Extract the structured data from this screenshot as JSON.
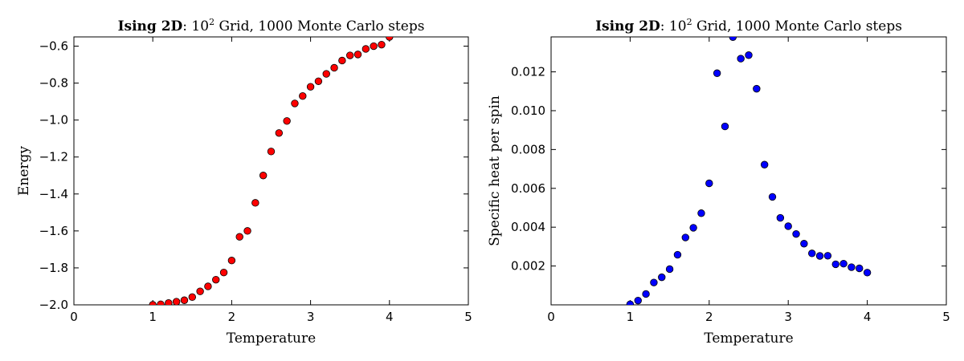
{
  "chart_data": [
    {
      "type": "scatter",
      "title_parts": {
        "bold": "Ising 2D",
        "sep": ": ",
        "base": "10",
        "exp": "2",
        "rest": " Grid, 1000 Monte Carlo steps"
      },
      "xlabel": "Temperature",
      "ylabel": "Energy",
      "xlim": [
        0,
        5
      ],
      "ylim": [
        -2.0,
        -0.55
      ],
      "xticks": [
        0,
        1,
        2,
        3,
        4,
        5
      ],
      "xtick_labels": [
        "0",
        "1",
        "2",
        "3",
        "4",
        "5"
      ],
      "yticks": [
        -2.0,
        -1.8,
        -1.6,
        -1.4,
        -1.2,
        -1.0,
        -0.8,
        -0.6
      ],
      "ytick_labels": [
        "−2.0",
        "−1.8",
        "−1.6",
        "−1.4",
        "−1.2",
        "−1.0",
        "−0.8",
        "−0.6"
      ],
      "marker_color": "#ff0000",
      "grid": false,
      "series": [
        {
          "x": [
            1.0,
            1.1,
            1.2,
            1.3,
            1.4,
            1.5,
            1.6,
            1.7,
            1.8,
            1.9,
            2.0,
            2.1,
            2.2,
            2.3,
            2.4,
            2.5,
            2.6,
            2.7,
            2.8,
            2.9,
            3.0,
            3.1,
            3.2,
            3.3,
            3.4,
            3.5,
            3.6,
            3.7,
            3.8,
            3.9,
            4.0
          ],
          "y": [
            -2.0,
            -1.997,
            -1.99,
            -1.983,
            -1.975,
            -1.958,
            -1.927,
            -1.9,
            -1.864,
            -1.825,
            -1.76,
            -1.632,
            -1.6,
            -1.448,
            -1.3,
            -1.17,
            -1.07,
            -1.005,
            -0.91,
            -0.87,
            -0.82,
            -0.79,
            -0.75,
            -0.717,
            -0.678,
            -0.65,
            -0.645,
            -0.615,
            -0.6,
            -0.592,
            -0.55
          ]
        }
      ]
    },
    {
      "type": "scatter",
      "title_parts": {
        "bold": "Ising 2D",
        "sep": ": ",
        "base": "10",
        "exp": "2",
        "rest": " Grid, 1000 Monte Carlo steps"
      },
      "xlabel": "Temperature",
      "ylabel": "Specific heat per spin",
      "xlim": [
        0,
        5
      ],
      "ylim": [
        0.0,
        0.0138
      ],
      "xticks": [
        0,
        1,
        2,
        3,
        4,
        5
      ],
      "xtick_labels": [
        "0",
        "1",
        "2",
        "3",
        "4",
        "5"
      ],
      "yticks": [
        0.002,
        0.004,
        0.006,
        0.008,
        0.01,
        0.012
      ],
      "ytick_labels": [
        "0.002",
        "0.004",
        "0.006",
        "0.008",
        "0.010",
        "0.012"
      ],
      "marker_color": "#0000ff",
      "grid": false,
      "series": [
        {
          "x": [
            1.0,
            1.1,
            1.2,
            1.3,
            1.4,
            1.5,
            1.6,
            1.7,
            1.8,
            1.9,
            2.0,
            2.1,
            2.2,
            2.3,
            2.4,
            2.5,
            2.6,
            2.7,
            2.8,
            2.9,
            3.0,
            3.1,
            3.2,
            3.3,
            3.4,
            3.5,
            3.6,
            3.7,
            3.8,
            3.9,
            4.0
          ],
          "y": [
            3e-05,
            0.00022,
            0.00056,
            0.00115,
            0.00142,
            0.00184,
            0.00258,
            0.00347,
            0.00397,
            0.00472,
            0.00626,
            0.01193,
            0.00919,
            0.01379,
            0.01268,
            0.01286,
            0.01113,
            0.00722,
            0.00556,
            0.00448,
            0.00405,
            0.00365,
            0.00315,
            0.00265,
            0.00252,
            0.00253,
            0.00209,
            0.00212,
            0.00194,
            0.00188,
            0.00166
          ]
        }
      ]
    }
  ]
}
